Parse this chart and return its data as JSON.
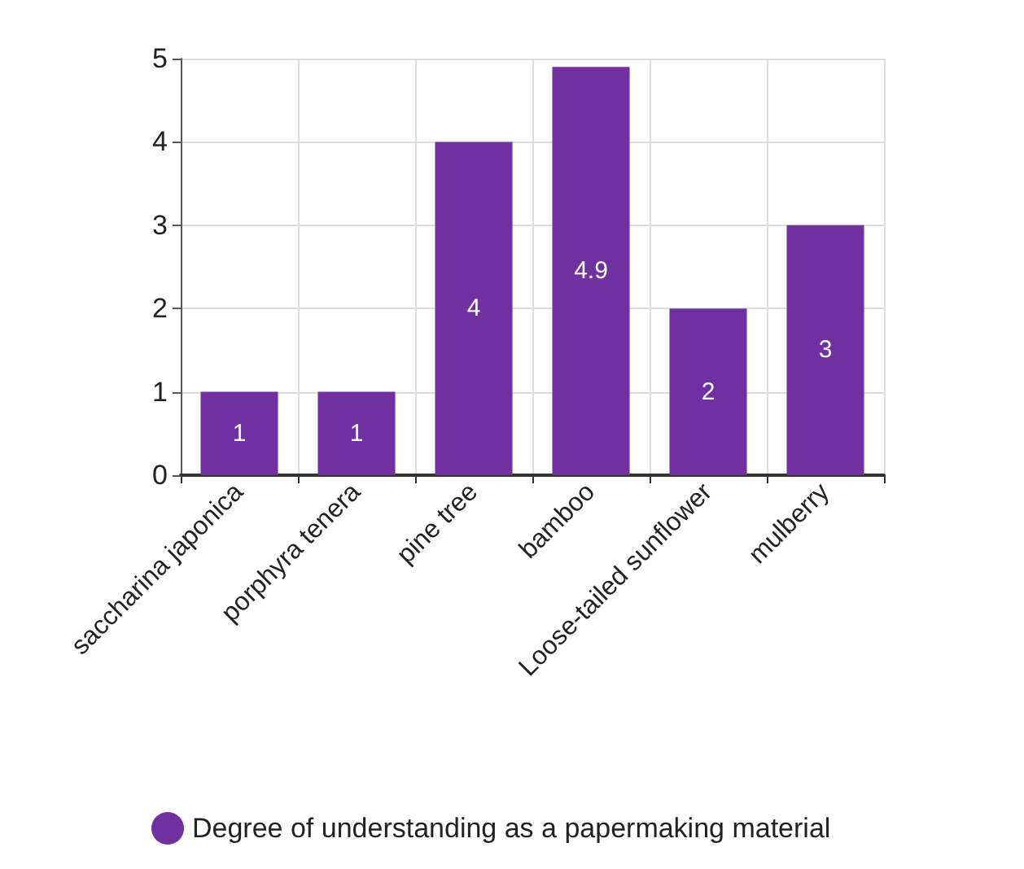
{
  "chart_data": {
    "type": "bar",
    "categories": [
      "saccharina japonica",
      "porphyra tenera",
      "pine tree",
      "bamboo",
      "Loose-tailed sunflower",
      "mulberry"
    ],
    "series": [
      {
        "name": "Degree of understanding as a papermaking material",
        "color": "#7030a0",
        "values": [
          1,
          1,
          4,
          4.9,
          2,
          3
        ]
      }
    ],
    "ylim": [
      0,
      5
    ],
    "yticks": [
      0,
      1,
      2,
      3,
      4,
      5
    ],
    "grid": true,
    "legend": "bottom",
    "data_labels": true
  }
}
